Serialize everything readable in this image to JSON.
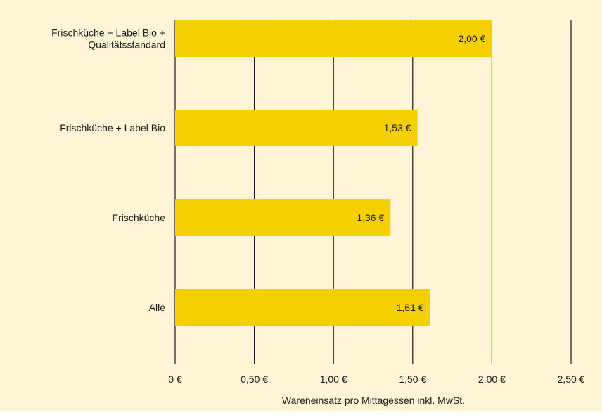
{
  "chart_data": {
    "type": "bar",
    "orientation": "horizontal",
    "categories": [
      [
        "Frischküche + Label Bio +",
        "Qualitätsstandard"
      ],
      [
        "Frischküche + Label Bio"
      ],
      [
        "Frischküche"
      ],
      [
        "Alle"
      ]
    ],
    "values": [
      2.0,
      1.53,
      1.36,
      1.61
    ],
    "value_labels": [
      "2,00 €",
      "1,53 €",
      "1,36 €",
      "1,61 €"
    ],
    "xlabel": "Wareneinsatz pro Mittagessen inkl. MwSt.",
    "xlim": [
      0,
      2.5
    ],
    "x_ticks": [
      0,
      0.5,
      1.0,
      1.5,
      2.0,
      2.5
    ],
    "x_tick_labels": [
      "0 €",
      "0,50 €",
      "1,00 €",
      "1,50 €",
      "2,00 €",
      "2,50 €"
    ],
    "grid": "vertical",
    "colors": {
      "background": "#fdf5d6",
      "bar": "#f5d000",
      "grid": "#1a1a1a"
    }
  }
}
